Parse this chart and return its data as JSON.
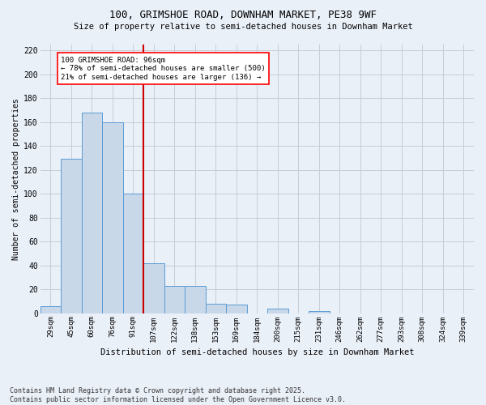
{
  "title1": "100, GRIMSHOE ROAD, DOWNHAM MARKET, PE38 9WF",
  "title2": "Size of property relative to semi-detached houses in Downham Market",
  "xlabel": "Distribution of semi-detached houses by size in Downham Market",
  "ylabel": "Number of semi-detached properties",
  "footer": "Contains HM Land Registry data © Crown copyright and database right 2025.\nContains public sector information licensed under the Open Government Licence v3.0.",
  "bin_labels": [
    "29sqm",
    "45sqm",
    "60sqm",
    "76sqm",
    "91sqm",
    "107sqm",
    "122sqm",
    "138sqm",
    "153sqm",
    "169sqm",
    "184sqm",
    "200sqm",
    "215sqm",
    "231sqm",
    "246sqm",
    "262sqm",
    "277sqm",
    "293sqm",
    "308sqm",
    "324sqm",
    "339sqm"
  ],
  "bar_values": [
    6,
    129,
    168,
    160,
    100,
    42,
    23,
    23,
    8,
    7,
    0,
    4,
    0,
    2,
    0,
    0,
    0,
    0,
    0,
    0,
    0
  ],
  "bar_color": "#c8d8e8",
  "bar_edge_color": "#5b9bd5",
  "vline_x": 4.5,
  "vline_color": "#cc0000",
  "annotation_text": "100 GRIMSHOE ROAD: 96sqm\n← 78% of semi-detached houses are smaller (500)\n21% of semi-detached houses are larger (136) →",
  "ylim": [
    0,
    225
  ],
  "yticks": [
    0,
    20,
    40,
    60,
    80,
    100,
    120,
    140,
    160,
    180,
    200,
    220
  ],
  "bg_color": "#eaf0f8",
  "plot_bg_color": "#eaf0f8",
  "grid_color": "#c5cdd8"
}
